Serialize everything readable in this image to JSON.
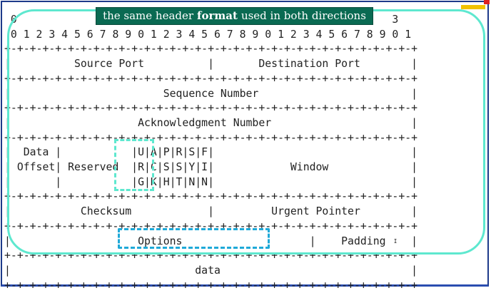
{
  "banner": {
    "before": "the same header",
    "keyword": "format",
    "after": "used in both directions"
  },
  "diagram_text": " 0                   1                   2                   3\n 0 1 2 3 4 5 6 7 8 9 0 1 2 3 4 5 6 7 8 9 0 1 2 3 4 5 6 7 8 9 0 1\n+-+-+-+-+-+-+-+-+-+-+-+-+-+-+-+-+-+-+-+-+-+-+-+-+-+-+-+-+-+-+-+-+\n|          Source Port          |       Destination Port        |\n+-+-+-+-+-+-+-+-+-+-+-+-+-+-+-+-+-+-+-+-+-+-+-+-+-+-+-+-+-+-+-+-+\n|                        Sequence Number                        |\n+-+-+-+-+-+-+-+-+-+-+-+-+-+-+-+-+-+-+-+-+-+-+-+-+-+-+-+-+-+-+-+-+\n|                    Acknowledgment Number                      |\n+-+-+-+-+-+-+-+-+-+-+-+-+-+-+-+-+-+-+-+-+-+-+-+-+-+-+-+-+-+-+-+-+\n|  Data |           |U|A|P|R|S|F|                               |\n| Offset| Reserved  |R|C|S|S|Y|I|            Window             |\n|       |           |G|K|H|T|N|N|                               |\n+-+-+-+-+-+-+-+-+-+-+-+-+-+-+-+-+-+-+-+-+-+-+-+-+-+-+-+-+-+-+-+-+\n|           Checksum            |         Urgent Pointer        |\n+-+-+-+-+-+-+-+-+-+-+-+-+-+-+-+-+-+-+-+-+-+-+-+-+-+-+-+-+-+-+-+-+\n|                    Options                    |    Padding    |\n+-+-+-+-+-+-+-+-+-+-+-+-+-+-+-+-+-+-+-+-+-+-+-+-+-+-+-+-+-+-+-+-+\n|                             data                              |\n+-+-+-+-+-+-+-+-+-+-+-+-+-+-+-+-+-+-+-+-+-+-+-+-+-+-+-+-+-+-+-+-+",
  "colors": {
    "banner_bg": "#0a6a52",
    "outline": "#5ee8cf",
    "options_highlight": "#1fa9d8",
    "frame": "#1d3a8a"
  }
}
